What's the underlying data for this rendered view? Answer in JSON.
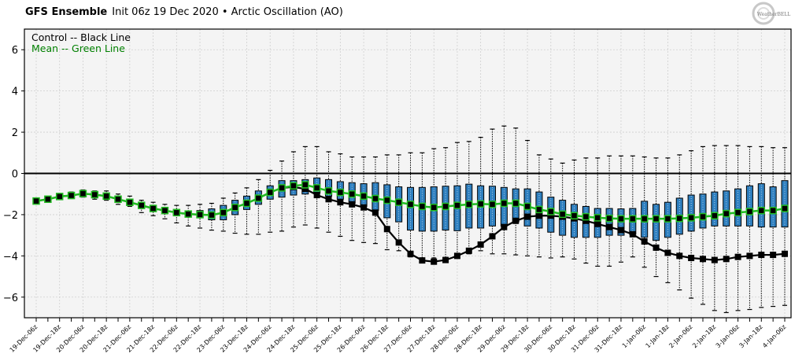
{
  "header": {
    "title_bold": "GFS Ensemble",
    "title_rest": "Init 06z 19 Dec 2020 • Arctic Oscillation (AO)",
    "logo_text": "WeatherBELL"
  },
  "colors": {
    "box_fill": "#2e7fbf",
    "mean_line": "#22bb22",
    "mean_text": "#008000",
    "control_line": "#000000",
    "plot_bg": "#f4f4f4"
  },
  "chart_data": {
    "type": "box",
    "title": "GFS Ensemble Init 06z 19 Dec 2020 • Arctic Oscillation (AO)",
    "xlabel": "",
    "ylabel": "",
    "ylim": [
      -7,
      7
    ],
    "yticks": [
      6,
      4,
      2,
      0,
      -2,
      -4,
      -6
    ],
    "grid": true,
    "legend": [
      "Control -- Black Line",
      "Mean -- Green Line"
    ],
    "legend_colors": [
      "#000000",
      "#008000"
    ],
    "legend_position": "top-left",
    "xtick_labels": [
      "19-Dec-06z",
      "19-Dec-18z",
      "20-Dec-06z",
      "20-Dec-18z",
      "21-Dec-06z",
      "21-Dec-18z",
      "22-Dec-06z",
      "22-Dec-18z",
      "23-Dec-06z",
      "23-Dec-18z",
      "24-Dec-06z",
      "24-Dec-18z",
      "25-Dec-06z",
      "25-Dec-18z",
      "26-Dec-06z",
      "26-Dec-18z",
      "27-Dec-06z",
      "27-Dec-18z",
      "28-Dec-06z",
      "28-Dec-18z",
      "29-Dec-06z",
      "29-Dec-18z",
      "30-Dec-06z",
      "30-Dec-18z",
      "31-Dec-06z",
      "31-Dec-18z",
      "1-Jan-06z",
      "1-Jan-18z",
      "2-Jan-06z",
      "2-Jan-18z",
      "3-Jan-06z",
      "3-Jan-18z",
      "4-Jan-06z"
    ],
    "step_hours": 6,
    "mean": [
      -1.34,
      -1.25,
      -1.12,
      -1.07,
      -0.98,
      -1.03,
      -1.1,
      -1.25,
      -1.4,
      -1.55,
      -1.7,
      -1.8,
      -1.9,
      -1.97,
      -2.0,
      -2.02,
      -1.9,
      -1.65,
      -1.45,
      -1.2,
      -0.92,
      -0.7,
      -0.6,
      -0.55,
      -0.7,
      -0.85,
      -0.92,
      -1.0,
      -1.1,
      -1.22,
      -1.3,
      -1.4,
      -1.5,
      -1.6,
      -1.65,
      -1.6,
      -1.55,
      -1.5,
      -1.48,
      -1.5,
      -1.45,
      -1.45,
      -1.6,
      -1.75,
      -1.85,
      -1.98,
      -2.05,
      -2.1,
      -2.15,
      -2.18,
      -2.2,
      -2.2,
      -2.2,
      -2.2,
      -2.2,
      -2.18,
      -2.15,
      -2.1,
      -2.05,
      -1.95,
      -1.9,
      -1.85,
      -1.8,
      -1.8,
      -1.7
    ],
    "control": [
      -1.34,
      -1.25,
      -1.12,
      -1.07,
      -0.98,
      -1.03,
      -1.1,
      -1.25,
      -1.4,
      -1.55,
      -1.7,
      -1.8,
      -1.9,
      -1.97,
      -2.0,
      -2.02,
      -1.9,
      -1.65,
      -1.45,
      -1.2,
      -0.92,
      -0.7,
      -0.66,
      -0.75,
      -1.05,
      -1.25,
      -1.4,
      -1.5,
      -1.65,
      -1.9,
      -2.7,
      -3.35,
      -3.9,
      -4.22,
      -4.28,
      -4.2,
      -4.0,
      -3.75,
      -3.45,
      -3.05,
      -2.6,
      -2.3,
      -2.1,
      -2.05,
      -2.05,
      -2.1,
      -2.18,
      -2.3,
      -2.45,
      -2.6,
      -2.75,
      -2.95,
      -3.3,
      -3.6,
      -3.85,
      -4.0,
      -4.1,
      -4.15,
      -4.2,
      -4.15,
      -4.05,
      -4.0,
      -3.95,
      -3.95,
      -3.9
    ],
    "q3": [
      -1.3,
      -1.22,
      -1.08,
      -1.02,
      -0.93,
      -0.98,
      -1.04,
      -1.18,
      -1.33,
      -1.48,
      -1.62,
      -1.72,
      -1.82,
      -1.85,
      -1.8,
      -1.72,
      -1.55,
      -1.3,
      -1.1,
      -0.85,
      -0.6,
      -0.35,
      -0.35,
      -0.3,
      -0.22,
      -0.3,
      -0.4,
      -0.45,
      -0.5,
      -0.45,
      -0.55,
      -0.65,
      -0.68,
      -0.68,
      -0.65,
      -0.62,
      -0.6,
      -0.52,
      -0.6,
      -0.62,
      -0.68,
      -0.75,
      -0.75,
      -0.9,
      -1.15,
      -1.3,
      -1.5,
      -1.6,
      -1.7,
      -1.7,
      -1.72,
      -1.7,
      -1.35,
      -1.5,
      -1.4,
      -1.2,
      -1.05,
      -1.0,
      -0.9,
      -0.85,
      -0.75,
      -0.6,
      -0.5,
      -0.65,
      -0.35
    ],
    "q1": [
      -1.38,
      -1.28,
      -1.16,
      -1.12,
      -1.03,
      -1.08,
      -1.16,
      -1.32,
      -1.47,
      -1.62,
      -1.78,
      -1.88,
      -1.98,
      -2.05,
      -2.15,
      -2.25,
      -2.25,
      -2.0,
      -1.75,
      -1.5,
      -1.25,
      -1.15,
      -1.05,
      -1.0,
      -0.95,
      -1.1,
      -1.25,
      -1.45,
      -1.6,
      -1.8,
      -2.15,
      -2.35,
      -2.75,
      -2.8,
      -2.8,
      -2.75,
      -2.78,
      -2.65,
      -2.65,
      -2.55,
      -2.55,
      -2.35,
      -2.55,
      -2.65,
      -2.85,
      -3.0,
      -3.1,
      -3.1,
      -3.1,
      -3.0,
      -3.0,
      -2.95,
      -3.1,
      -3.25,
      -3.1,
      -2.95,
      -2.8,
      -2.65,
      -2.55,
      -2.55,
      -2.55,
      -2.55,
      -2.6,
      -2.6,
      -2.6
    ],
    "max": [
      -1.25,
      -1.15,
      -1.02,
      -0.9,
      -0.8,
      -0.85,
      -0.85,
      -1.0,
      -1.1,
      -1.3,
      -1.4,
      -1.5,
      -1.55,
      -1.55,
      -1.5,
      -1.45,
      -1.2,
      -0.95,
      -0.7,
      -0.3,
      0.15,
      0.6,
      1.05,
      1.3,
      1.3,
      1.05,
      0.95,
      0.8,
      0.8,
      0.8,
      0.9,
      0.9,
      1.0,
      1.0,
      1.2,
      1.25,
      1.5,
      1.55,
      1.75,
      2.15,
      2.3,
      2.2,
      1.6,
      0.9,
      0.7,
      0.5,
      0.65,
      0.75,
      0.75,
      0.85,
      0.85,
      0.85,
      0.8,
      0.75,
      0.75,
      0.9,
      1.1,
      1.3,
      1.35,
      1.35,
      1.35,
      1.3,
      1.3,
      1.25,
      1.25
    ],
    "min": [
      -1.45,
      -1.35,
      -1.22,
      -1.22,
      -1.15,
      -1.25,
      -1.3,
      -1.5,
      -1.6,
      -1.9,
      -2.05,
      -2.2,
      -2.4,
      -2.55,
      -2.65,
      -2.75,
      -2.8,
      -2.9,
      -2.95,
      -2.95,
      -2.85,
      -2.8,
      -2.6,
      -2.5,
      -2.65,
      -2.85,
      -3.05,
      -3.25,
      -3.35,
      -3.4,
      -3.7,
      -3.75,
      -4.05,
      -4.1,
      -4.1,
      -4.1,
      -3.95,
      -3.9,
      -3.75,
      -3.9,
      -3.9,
      -3.95,
      -4.0,
      -4.05,
      -4.1,
      -4.05,
      -4.15,
      -4.35,
      -4.5,
      -4.5,
      -4.3,
      -4.05,
      -4.55,
      -5.0,
      -5.3,
      -5.65,
      -6.05,
      -6.35,
      -6.65,
      -6.75,
      -6.65,
      -6.6,
      -6.5,
      -6.45,
      -6.4
    ]
  }
}
